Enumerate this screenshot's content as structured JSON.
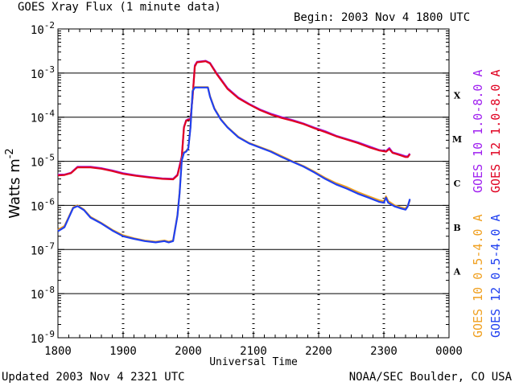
{
  "header": {
    "title": "GOES Xray Flux (1 minute data)",
    "begin": "Begin: 2003 Nov 4 1800 UTC"
  },
  "footer": {
    "updated": "Updated 2003 Nov  4 2321 UTC",
    "credit": "NOAA/SEC Boulder, CO USA"
  },
  "legend": {
    "long": [
      {
        "label": "GOES 10 1.0-8.0 A",
        "color": "#a020f0"
      },
      {
        "label": "GOES 12 1.0-8.0 A",
        "color": "#e00020"
      }
    ],
    "short": [
      {
        "label": "GOES 10 0.5-4.0 A",
        "color": "#f0a020"
      },
      {
        "label": "GOES 12 0.5-4.0 A",
        "color": "#2040f0"
      }
    ]
  },
  "chart_data": {
    "type": "line",
    "title": "GOES Xray Flux (1 minute data)",
    "xlabel": "Universal Time",
    "ylabel": "Watts m",
    "ylabel_superscript": "-2",
    "y_scale": "log",
    "ylim": [
      1e-09,
      0.01
    ],
    "xlim": [
      "1800",
      "0000"
    ],
    "x_tick_labels": [
      "1800",
      "1900",
      "2000",
      "2100",
      "2200",
      "2300",
      "0000"
    ],
    "y_tick_labels": [
      {
        "base": "10",
        "exp": "-9"
      },
      {
        "base": "10",
        "exp": "-8"
      },
      {
        "base": "10",
        "exp": "-7"
      },
      {
        "base": "10",
        "exp": "-6"
      },
      {
        "base": "10",
        "exp": "-5"
      },
      {
        "base": "10",
        "exp": "-4"
      },
      {
        "base": "10",
        "exp": "-3"
      },
      {
        "base": "10",
        "exp": "-2"
      }
    ],
    "flare_classes": [
      {
        "label": "A",
        "flux": 3.16e-08
      },
      {
        "label": "B",
        "flux": 3.16e-07
      },
      {
        "label": "C",
        "flux": 3.16e-06
      },
      {
        "label": "M",
        "flux": 3.16e-05
      },
      {
        "label": "X",
        "flux": 0.000316
      }
    ],
    "threshold_lines": [
      1e-08,
      1e-07,
      1e-06,
      1e-05,
      0.0001,
      0.001
    ],
    "series": [
      {
        "name": "GOES 10 1.0-8.0 A",
        "color": "#a020f0",
        "points": [
          [
            "1800",
            5e-06
          ],
          [
            "1806",
            5e-06
          ],
          [
            "1812",
            5.5e-06
          ],
          [
            "1818",
            7.5e-06
          ],
          [
            "1830",
            7.5e-06
          ],
          [
            "1840",
            7e-06
          ],
          [
            "1850",
            6.2e-06
          ],
          [
            "1900",
            5.4e-06
          ],
          [
            "1912",
            4.8e-06
          ],
          [
            "1924",
            4.4e-06
          ],
          [
            "1936",
            4.1e-06
          ],
          [
            "1946",
            4e-06
          ],
          [
            "1950",
            5e-06
          ],
          [
            "1954",
            1.3e-05
          ],
          [
            "1956",
            6e-05
          ],
          [
            "1958",
            8.5e-05
          ],
          [
            "2000",
            9e-05
          ],
          [
            "2002",
            9e-05
          ],
          [
            "2004",
            0.0003
          ],
          [
            "2006",
            0.0015
          ],
          [
            "2008",
            0.0018
          ],
          [
            "2016",
            0.0019
          ],
          [
            "2020",
            0.0017
          ],
          [
            "2026",
            0.001
          ],
          [
            "2036",
            0.00046
          ],
          [
            "2046",
            0.00028
          ],
          [
            "2056",
            0.0002
          ],
          [
            "2106",
            0.00015
          ],
          [
            "2116",
            0.00012
          ],
          [
            "2126",
            0.0001
          ],
          [
            "2136",
            8.6e-05
          ],
          [
            "2146",
            7.2e-05
          ],
          [
            "2156",
            5.8e-05
          ],
          [
            "2206",
            4.8e-05
          ],
          [
            "2216",
            3.8e-05
          ],
          [
            "2226",
            3.2e-05
          ],
          [
            "2236",
            2.7e-05
          ],
          [
            "2246",
            2.2e-05
          ],
          [
            "2256",
            1.8e-05
          ],
          [
            "2302",
            1.7e-05
          ],
          [
            "2305",
            2e-05
          ],
          [
            "2308",
            1.6e-05
          ],
          [
            "2312",
            1.5e-05
          ],
          [
            "2316",
            1.4e-05
          ],
          [
            "2320",
            1.3e-05
          ],
          [
            "2322",
            1.3e-05
          ],
          [
            "2324",
            1.5e-05
          ]
        ]
      },
      {
        "name": "GOES 12 1.0-8.0 A",
        "color": "#e00020",
        "points": [
          [
            "1800",
            4.8e-06
          ],
          [
            "1806",
            4.9e-06
          ],
          [
            "1812",
            5.4e-06
          ],
          [
            "1818",
            7.3e-06
          ],
          [
            "1830",
            7.3e-06
          ],
          [
            "1840",
            6.8e-06
          ],
          [
            "1850",
            6e-06
          ],
          [
            "1900",
            5.2e-06
          ],
          [
            "1912",
            4.7e-06
          ],
          [
            "1924",
            4.3e-06
          ],
          [
            "1936",
            4e-06
          ],
          [
            "1946",
            3.9e-06
          ],
          [
            "1950",
            4.8e-06
          ],
          [
            "1954",
            1.2e-05
          ],
          [
            "1956",
            5.8e-05
          ],
          [
            "1958",
            8.3e-05
          ],
          [
            "2000",
            8.8e-05
          ],
          [
            "2002",
            8.8e-05
          ],
          [
            "2004",
            0.00029
          ],
          [
            "2006",
            0.0014
          ],
          [
            "2008",
            0.00175
          ],
          [
            "2016",
            0.00185
          ],
          [
            "2020",
            0.00165
          ],
          [
            "2026",
            0.00096
          ],
          [
            "2036",
            0.00044
          ],
          [
            "2046",
            0.00027
          ],
          [
            "2056",
            0.000195
          ],
          [
            "2106",
            0.000145
          ],
          [
            "2116",
            0.000115
          ],
          [
            "2126",
            9.6e-05
          ],
          [
            "2136",
            8.3e-05
          ],
          [
            "2146",
            7e-05
          ],
          [
            "2156",
            5.6e-05
          ],
          [
            "2206",
            4.6e-05
          ],
          [
            "2216",
            3.7e-05
          ],
          [
            "2226",
            3.1e-05
          ],
          [
            "2236",
            2.6e-05
          ],
          [
            "2246",
            2.1e-05
          ],
          [
            "2256",
            1.75e-05
          ],
          [
            "2302",
            1.65e-05
          ],
          [
            "2305",
            1.9e-05
          ],
          [
            "2308",
            1.55e-05
          ],
          [
            "2312",
            1.45e-05
          ],
          [
            "2316",
            1.35e-05
          ],
          [
            "2320",
            1.25e-05
          ],
          [
            "2322",
            1.25e-05
          ],
          [
            "2324",
            1.45e-05
          ]
        ]
      },
      {
        "name": "GOES 10 0.5-4.0 A",
        "color": "#f0a020",
        "points": [
          [
            "1800",
            2.8e-07
          ],
          [
            "1806",
            3.4e-07
          ],
          [
            "1810",
            5.5e-07
          ],
          [
            "1814",
            9e-07
          ],
          [
            "1818",
            1e-06
          ],
          [
            "1824",
            8e-07
          ],
          [
            "1830",
            5.5e-07
          ],
          [
            "1840",
            4e-07
          ],
          [
            "1850",
            2.8e-07
          ],
          [
            "1900",
            2.1e-07
          ],
          [
            "1910",
            1.8e-07
          ],
          [
            "1920",
            1.6e-07
          ],
          [
            "1930",
            1.5e-07
          ],
          [
            "1938",
            1.6e-07
          ],
          [
            "1942",
            1.5e-07
          ],
          [
            "1946",
            1.6e-07
          ],
          [
            "1950",
            6e-07
          ],
          [
            "1952",
            2e-06
          ],
          [
            "1954",
            1.1e-05
          ],
          [
            "1956",
            1.6e-05
          ],
          [
            "1958",
            1.7e-05
          ],
          [
            "2000",
            2e-05
          ],
          [
            "2002",
            6e-05
          ],
          [
            "2004",
            0.0004
          ],
          [
            "2006",
            0.00048
          ],
          [
            "2018",
            0.00048
          ],
          [
            "2020",
            0.0003
          ],
          [
            "2024",
            0.00016
          ],
          [
            "2030",
            9e-05
          ],
          [
            "2036",
            6e-05
          ],
          [
            "2046",
            3.6e-05
          ],
          [
            "2056",
            2.6e-05
          ],
          [
            "2106",
            2.1e-05
          ],
          [
            "2116",
            1.7e-05
          ],
          [
            "2126",
            1.3e-05
          ],
          [
            "2136",
            1e-05
          ],
          [
            "2146",
            7.8e-06
          ],
          [
            "2156",
            5.8e-06
          ],
          [
            "2206",
            4.2e-06
          ],
          [
            "2216",
            3.2e-06
          ],
          [
            "2226",
            2.6e-06
          ],
          [
            "2236",
            2e-06
          ],
          [
            "2246",
            1.6e-06
          ],
          [
            "2256",
            1.3e-06
          ],
          [
            "2300",
            1.25e-06
          ],
          [
            "2302",
            1.6e-06
          ],
          [
            "2304",
            1.25e-06
          ],
          [
            "2310",
            1e-06
          ],
          [
            "2316",
            9e-07
          ],
          [
            "2320",
            8.5e-07
          ],
          [
            "2322",
            1e-06
          ],
          [
            "2324",
            1.3e-06
          ]
        ]
      },
      {
        "name": "GOES 12 0.5-4.0 A",
        "color": "#2040f0",
        "points": [
          [
            "1800",
            2.6e-07
          ],
          [
            "1806",
            3.2e-07
          ],
          [
            "1810",
            5.3e-07
          ],
          [
            "1814",
            8.7e-07
          ],
          [
            "1818",
            9.7e-07
          ],
          [
            "1824",
            7.8e-07
          ],
          [
            "1830",
            5.3e-07
          ],
          [
            "1840",
            3.9e-07
          ],
          [
            "1850",
            2.7e-07
          ],
          [
            "1900",
            2e-07
          ],
          [
            "1910",
            1.75e-07
          ],
          [
            "1920",
            1.55e-07
          ],
          [
            "1930",
            1.45e-07
          ],
          [
            "1938",
            1.55e-07
          ],
          [
            "1942",
            1.45e-07
          ],
          [
            "1946",
            1.55e-07
          ],
          [
            "1950",
            5.8e-07
          ],
          [
            "1952",
            1.9e-06
          ],
          [
            "1954",
            1.05e-05
          ],
          [
            "1956",
            1.55e-05
          ],
          [
            "1958",
            1.65e-05
          ],
          [
            "2000",
            1.95e-05
          ],
          [
            "2002",
            5.8e-05
          ],
          [
            "2004",
            0.00039
          ],
          [
            "2006",
            0.00047
          ],
          [
            "2018",
            0.00047
          ],
          [
            "2020",
            0.00029
          ],
          [
            "2024",
            0.000155
          ],
          [
            "2030",
            8.8e-05
          ],
          [
            "2036",
            5.9e-05
          ],
          [
            "2046",
            3.5e-05
          ],
          [
            "2056",
            2.55e-05
          ],
          [
            "2106",
            2.05e-05
          ],
          [
            "2116",
            1.65e-05
          ],
          [
            "2126",
            1.25e-05
          ],
          [
            "2136",
            9.7e-06
          ],
          [
            "2146",
            7.6e-06
          ],
          [
            "2156",
            5.6e-06
          ],
          [
            "2206",
            4e-06
          ],
          [
            "2216",
            3e-06
          ],
          [
            "2226",
            2.4e-06
          ],
          [
            "2236",
            1.85e-06
          ],
          [
            "2246",
            1.5e-06
          ],
          [
            "2256",
            1.2e-06
          ],
          [
            "2300",
            1.15e-06
          ],
          [
            "2302",
            1.5e-06
          ],
          [
            "2304",
            1.15e-06
          ],
          [
            "2310",
            9.5e-07
          ],
          [
            "2316",
            8.5e-07
          ],
          [
            "2320",
            8e-07
          ],
          [
            "2322",
            9.5e-07
          ],
          [
            "2324",
            1.4e-06
          ]
        ]
      }
    ]
  }
}
